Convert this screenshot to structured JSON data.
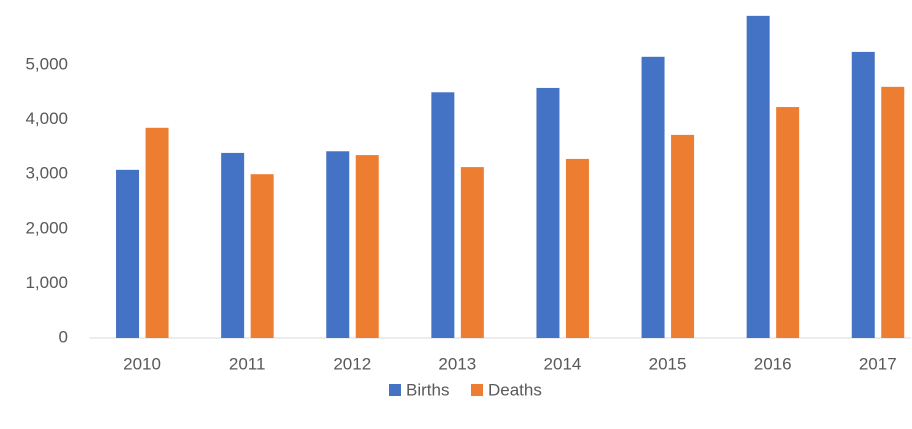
{
  "chart_data": {
    "type": "bar",
    "categories": [
      "2010",
      "2011",
      "2012",
      "2013",
      "2014",
      "2015",
      "2016",
      "2017"
    ],
    "series": [
      {
        "name": "Births",
        "color": "#4472c4",
        "values": [
          3080,
          3390,
          3420,
          4500,
          4580,
          5150,
          5900,
          5240
        ]
      },
      {
        "name": "Deaths",
        "color": "#ed7d31",
        "values": [
          3850,
          3000,
          3350,
          3130,
          3280,
          3720,
          4230,
          4600
        ]
      }
    ],
    "ylim": [
      0,
      6000
    ],
    "yticks": [
      0,
      {
        "value": 1000,
        "label": "1,000"
      },
      {
        "value": 2000,
        "label": "2,000"
      },
      {
        "value": 3000,
        "label": "3,000"
      },
      {
        "value": 4000,
        "label": "4,000"
      },
      {
        "value": 5000,
        "label": "5,000"
      }
    ],
    "grid": false,
    "legend": "bottom"
  }
}
